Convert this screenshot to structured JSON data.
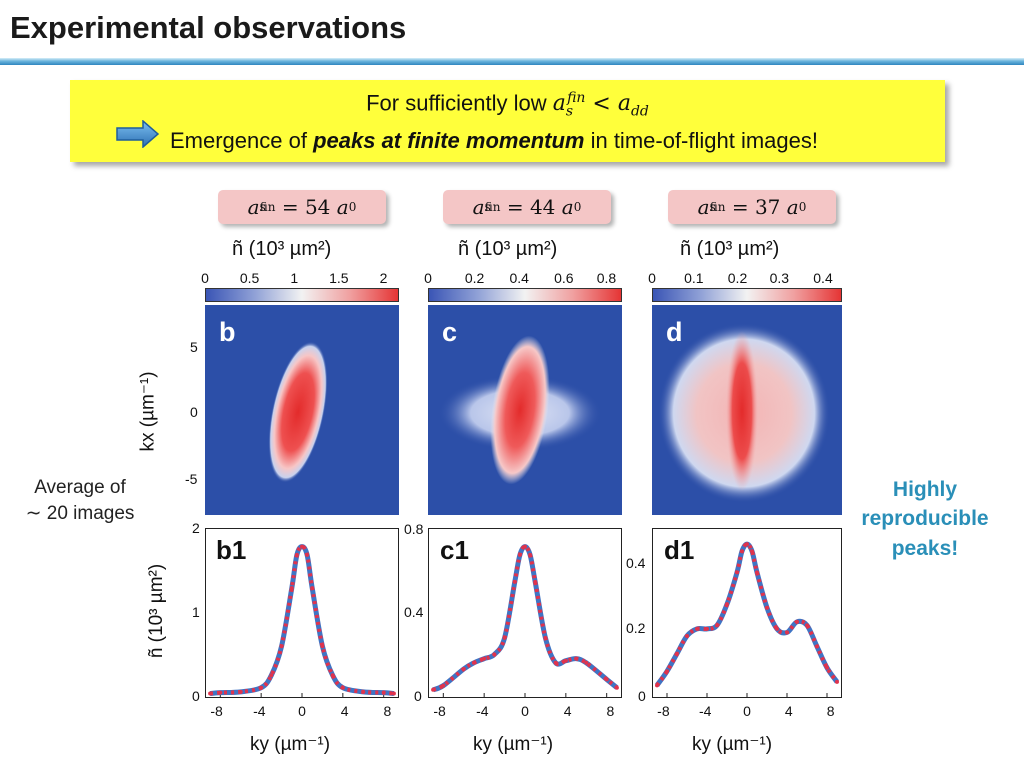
{
  "title": "Experimental observations",
  "callout": {
    "line1_prefix": "For sufficiently low ",
    "line1_math_lhs": "a",
    "line1_math_lhs_sub": "s",
    "line1_math_lhs_sup": "fin",
    "line1_math_op": " < ",
    "line1_math_rhs": "a",
    "line1_math_rhs_sub": "dd",
    "line2_prefix": "Emergence of ",
    "line2_emphasis": "peaks at finite momentum",
    "line2_suffix": " in time-of-flight images!",
    "arrow_icon": "right-arrow-icon"
  },
  "panels": [
    {
      "label_var": "a",
      "label_sub": "s",
      "label_sup": "fin",
      "label_eq": " = 54 ",
      "label_unit": "a",
      "label_unit_sub": "0",
      "colorbar_title": "ñ (10³ µm²)",
      "colorbar_ticks": [
        "0",
        "0.5",
        "1",
        "1.5",
        "2"
      ],
      "image_letter": "b",
      "plot_letter": "b1",
      "plot_yticks": [
        "2",
        "1",
        "0"
      ]
    },
    {
      "label_var": "a",
      "label_sub": "s",
      "label_sup": "fin",
      "label_eq": " = 44 ",
      "label_unit": "a",
      "label_unit_sub": "0",
      "colorbar_title": "ñ (10³ µm²)",
      "colorbar_ticks": [
        "0",
        "0.2",
        "0.4",
        "0.6",
        "0.8"
      ],
      "image_letter": "c",
      "plot_letter": "c1",
      "plot_yticks": [
        "0.8",
        "0.4",
        "0"
      ]
    },
    {
      "label_var": "a",
      "label_sub": "s",
      "label_sup": "fin",
      "label_eq": " = 37 ",
      "label_unit": "a",
      "label_unit_sub": "0",
      "colorbar_title": "ñ (10³ µm²)",
      "colorbar_ticks": [
        "0",
        "0.1",
        "0.2",
        "0.3",
        "0.4"
      ],
      "image_letter": "d",
      "plot_letter": "d1",
      "plot_yticks": [
        "0.4",
        "0.2",
        "0"
      ]
    }
  ],
  "image_axis": {
    "ylabel": "kx (µm⁻¹)",
    "yticks": [
      "5",
      "0",
      "-5"
    ]
  },
  "plot_axis": {
    "ylabel": "ñ (10³ µm²)",
    "xlabel": "ky (µm⁻¹)",
    "xticks": [
      "-8",
      "-4",
      "0",
      "4",
      "8"
    ]
  },
  "left_note": {
    "line1": "Average of",
    "line2": "∼ 20 images"
  },
  "right_note": {
    "line1": "Highly",
    "line2": "reproducible",
    "line3": "peaks!"
  },
  "colors": {
    "callout_bg": "#ffff3b",
    "label_bg": "#f4c6c6",
    "arrow": "#3b8fd0",
    "heat_low": "#2a4ca6",
    "heat_high": "#e53535",
    "fit_line": "#3f74c4",
    "data_points": "#e0334d",
    "highlight_text": "#2a8fb8"
  },
  "chart_data": [
    {
      "type": "line",
      "panel": "b1",
      "xlabel": "ky (µm⁻¹)",
      "ylabel": "ñ (10³ µm²)",
      "xlim": [
        -9.5,
        9.5
      ],
      "ylim": [
        0,
        2
      ],
      "series": [
        {
          "x": [
            -9,
            -8,
            -6,
            -4,
            -3,
            -2,
            -1,
            -0.5,
            0,
            0.5,
            1,
            2,
            3,
            4,
            6,
            8,
            9
          ],
          "values": [
            0.03,
            0.04,
            0.05,
            0.1,
            0.25,
            0.6,
            1.3,
            1.7,
            1.8,
            1.7,
            1.3,
            0.6,
            0.25,
            0.1,
            0.05,
            0.04,
            0.03
          ]
        }
      ]
    },
    {
      "type": "line",
      "panel": "c1",
      "xlabel": "ky (µm⁻¹)",
      "ylabel": "ñ (10³ µm²)",
      "xlim": [
        -9.5,
        9.5
      ],
      "ylim": [
        0,
        0.8
      ],
      "series": [
        {
          "x": [
            -9,
            -8,
            -6,
            -5,
            -4,
            -3,
            -2,
            -1,
            -0.5,
            0,
            0.5,
            1,
            2,
            3,
            4,
            5,
            6,
            8,
            9
          ],
          "values": [
            0.03,
            0.05,
            0.13,
            0.16,
            0.18,
            0.2,
            0.28,
            0.55,
            0.68,
            0.72,
            0.68,
            0.55,
            0.28,
            0.16,
            0.17,
            0.18,
            0.16,
            0.08,
            0.04
          ]
        }
      ]
    },
    {
      "type": "line",
      "panel": "d1",
      "xlabel": "ky (µm⁻¹)",
      "ylabel": "ñ (10³ µm²)",
      "xlim": [
        -9.5,
        9.5
      ],
      "ylim": [
        0,
        0.47
      ],
      "series": [
        {
          "x": [
            -9,
            -8,
            -7,
            -6,
            -5,
            -4,
            -3,
            -2,
            -1,
            -0.5,
            0,
            0.5,
            1,
            2,
            3,
            4,
            5,
            6,
            7,
            8,
            9
          ],
          "values": [
            0.03,
            0.07,
            0.12,
            0.17,
            0.19,
            0.19,
            0.2,
            0.26,
            0.35,
            0.41,
            0.43,
            0.41,
            0.35,
            0.25,
            0.19,
            0.18,
            0.21,
            0.2,
            0.14,
            0.08,
            0.04
          ]
        }
      ]
    }
  ]
}
